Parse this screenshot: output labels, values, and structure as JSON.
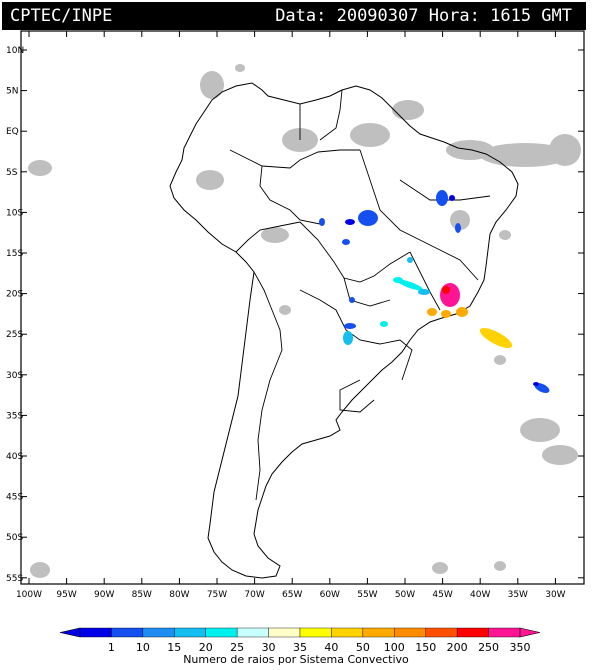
{
  "header": {
    "org": "CPTEC/INPE",
    "date_time": "Data: 20090307 Hora: 1615 GMT"
  },
  "map": {
    "lat_labels": [
      "10N",
      "5N",
      "EQ",
      "5S",
      "10S",
      "15S",
      "20S",
      "25S",
      "30S",
      "35S",
      "40S",
      "45S",
      "50S",
      "55S"
    ],
    "lon_labels": [
      "100W",
      "95W",
      "90W",
      "85W",
      "80W",
      "75W",
      "70W",
      "65W",
      "60W",
      "55W",
      "50W",
      "45W",
      "40W",
      "35W",
      "30W"
    ],
    "region": "South America",
    "cloud_color": "#bfbfbf"
  },
  "colorbar": {
    "title": "Numero de raios por Sistema Convectivo",
    "labels": [
      "1",
      "10",
      "15",
      "20",
      "25",
      "30",
      "35",
      "40",
      "50",
      "100",
      "150",
      "200",
      "250",
      "350"
    ],
    "colors": [
      "#0000e6",
      "#1450f0",
      "#1e8cf0",
      "#14bef0",
      "#00f0f0",
      "#c8ffff",
      "#ffffc8",
      "#ffff00",
      "#ffd200",
      "#ffaa00",
      "#ff8c00",
      "#ff5000",
      "#ff0000",
      "#ff1493"
    ]
  }
}
